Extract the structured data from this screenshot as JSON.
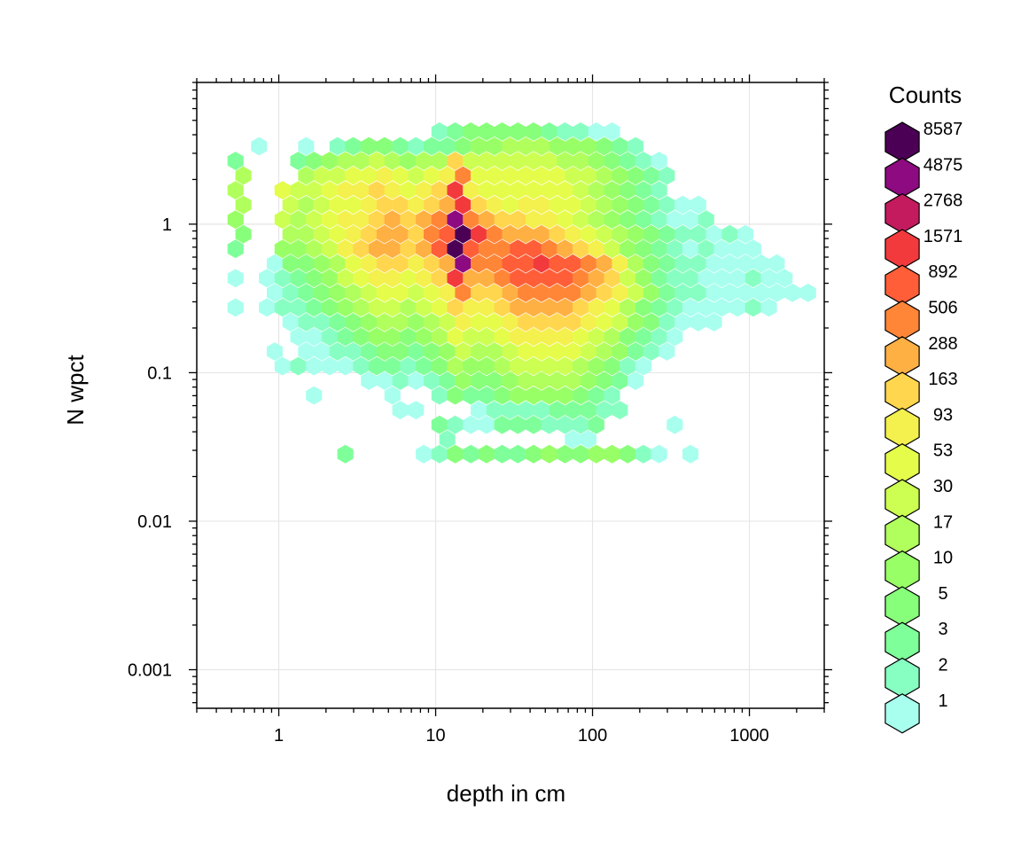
{
  "chart_data": {
    "type": "heatmap",
    "subtype": "hexbin",
    "xlabel": "depth in cm",
    "ylabel": "N wpct",
    "x_scale": "log10",
    "y_scale": "log10",
    "xlim": [
      0.3,
      3000
    ],
    "ylim": [
      0.00055,
      9
    ],
    "x_ticks": [
      {
        "value": 1,
        "label": "1"
      },
      {
        "value": 10,
        "label": "10"
      },
      {
        "value": 100,
        "label": "100"
      },
      {
        "value": 1000,
        "label": "1000"
      }
    ],
    "y_ticks": [
      {
        "value": 1,
        "label": "1"
      },
      {
        "value": 0.1,
        "label": "0.1"
      },
      {
        "value": 0.01,
        "label": "0.01"
      },
      {
        "value": 0.001,
        "label": "0.001"
      }
    ],
    "grid": true,
    "legend": {
      "title": "Counts",
      "placement": "right",
      "levels": [
        {
          "label": "8587",
          "color": "#4B0055"
        },
        {
          "label": "4875",
          "color": "#8E0A80"
        },
        {
          "label": "2768",
          "color": "#C41A5E"
        },
        {
          "label": "1571",
          "color": "#F23A3C"
        },
        {
          "label": "892",
          "color": "#FF5E38"
        },
        {
          "label": "506",
          "color": "#FF8637"
        },
        {
          "label": "288",
          "color": "#FFB043"
        },
        {
          "label": "163",
          "color": "#FFD64E"
        },
        {
          "label": "93",
          "color": "#F4F04D"
        },
        {
          "label": "53",
          "color": "#E6FC4B"
        },
        {
          "label": "30",
          "color": "#CDFF52"
        },
        {
          "label": "17",
          "color": "#B1FF5C"
        },
        {
          "label": "10",
          "color": "#99FF66"
        },
        {
          "label": "5",
          "color": "#88FF7A"
        },
        {
          "label": "3",
          "color": "#7FFF99"
        },
        {
          "label": "2",
          "color": "#88FFC2"
        },
        {
          "label": "1",
          "color": "#A8FFEE"
        }
      ]
    },
    "hex_rows": {
      "x_origin": 0.53,
      "x_step_log10": 0.1,
      "y_top": 4.2,
      "y_step_log10": -0.0987,
      "counts_legend_index": "0 = 8587 (darkest) ... 16 = 1 (lightest), -1 = empty",
      "rows": [
        [
          -1,
          -1,
          -1,
          -1,
          -1,
          -1,
          -1,
          -1,
          -1,
          -1,
          -1,
          -1,
          -1,
          15,
          14,
          13,
          13,
          13,
          13,
          13,
          14,
          15,
          15,
          16,
          16,
          -1,
          -1,
          -1,
          -1,
          -1,
          -1,
          -1,
          -1,
          -1,
          -1,
          -1,
          -1
        ],
        [
          -1,
          16,
          -1,
          -1,
          16,
          -1,
          15,
          14,
          13,
          13,
          14,
          15,
          14,
          14,
          13,
          12,
          12,
          11,
          11,
          11,
          12,
          12,
          12,
          13,
          14,
          15,
          -1,
          -1,
          -1,
          -1,
          -1,
          -1,
          -1,
          -1,
          -1,
          -1,
          -1
        ],
        [
          14,
          -1,
          -1,
          -1,
          14,
          13,
          12,
          11,
          11,
          10,
          11,
          12,
          11,
          11,
          7,
          10,
          10,
          10,
          10,
          10,
          10,
          11,
          11,
          12,
          13,
          14,
          15,
          16,
          -1,
          -1,
          -1,
          -1,
          -1,
          -1,
          -1,
          -1,
          -1
        ],
        [
          11,
          -1,
          -1,
          -1,
          11,
          10,
          10,
          9,
          9,
          8,
          9,
          10,
          9,
          8,
          5,
          9,
          9,
          9,
          9,
          9,
          9,
          10,
          10,
          11,
          12,
          13,
          14,
          15,
          -1,
          -1,
          -1,
          -1,
          -1,
          -1,
          -1,
          -1,
          -1
        ],
        [
          11,
          -1,
          -1,
          9,
          10,
          10,
          9,
          8,
          8,
          7,
          8,
          9,
          8,
          7,
          3,
          8,
          9,
          9,
          9,
          9,
          9,
          9,
          10,
          11,
          12,
          13,
          14,
          15,
          -1,
          -1,
          -1,
          -1,
          -1,
          -1,
          -1,
          -1,
          -1
        ],
        [
          11,
          -1,
          -1,
          10,
          11,
          10,
          9,
          9,
          8,
          7,
          7,
          8,
          7,
          6,
          3,
          7,
          8,
          9,
          8,
          8,
          9,
          9,
          10,
          11,
          12,
          13,
          14,
          15,
          16,
          16,
          -1,
          -1,
          -1,
          -1,
          -1,
          -1,
          -1
        ],
        [
          12,
          -1,
          -1,
          10,
          11,
          10,
          9,
          8,
          8,
          7,
          6,
          7,
          6,
          5,
          1,
          5,
          6,
          7,
          7,
          8,
          8,
          9,
          10,
          11,
          12,
          13,
          14,
          15,
          16,
          16,
          15,
          -1,
          -1,
          -1,
          -1,
          -1,
          -1
        ],
        [
          13,
          -1,
          -1,
          11,
          11,
          10,
          9,
          8,
          7,
          6,
          6,
          7,
          5,
          4,
          0,
          3,
          5,
          6,
          6,
          6,
          7,
          8,
          9,
          10,
          11,
          12,
          13,
          14,
          15,
          15,
          16,
          15,
          16,
          -1,
          -1,
          -1,
          -1
        ],
        [
          14,
          -1,
          -1,
          12,
          12,
          11,
          10,
          8,
          7,
          6,
          6,
          7,
          6,
          4,
          0,
          4,
          5,
          5,
          4,
          4,
          5,
          6,
          7,
          8,
          10,
          12,
          13,
          14,
          15,
          16,
          15,
          16,
          16,
          16,
          -1,
          -1,
          -1
        ],
        [
          -1,
          -1,
          16,
          13,
          13,
          12,
          11,
          9,
          8,
          7,
          7,
          8,
          7,
          6,
          1,
          5,
          5,
          4,
          4,
          3,
          4,
          4,
          5,
          6,
          8,
          11,
          13,
          14,
          15,
          15,
          16,
          16,
          16,
          16,
          16,
          -1,
          -1
        ],
        [
          16,
          -1,
          16,
          15,
          14,
          13,
          12,
          10,
          9,
          8,
          8,
          9,
          8,
          7,
          3,
          6,
          6,
          5,
          4,
          4,
          4,
          4,
          5,
          6,
          7,
          10,
          12,
          14,
          15,
          15,
          16,
          16,
          16,
          15,
          16,
          16,
          -1
        ],
        [
          -1,
          -1,
          16,
          15,
          14,
          13,
          12,
          11,
          10,
          9,
          9,
          10,
          9,
          8,
          5,
          7,
          7,
          6,
          5,
          5,
          5,
          5,
          6,
          7,
          8,
          10,
          12,
          14,
          15,
          15,
          16,
          16,
          16,
          16,
          16,
          16,
          16
        ],
        [
          16,
          -1,
          16,
          15,
          15,
          14,
          13,
          12,
          11,
          10,
          10,
          11,
          10,
          9,
          7,
          8,
          8,
          7,
          6,
          6,
          6,
          6,
          7,
          8,
          9,
          11,
          13,
          14,
          15,
          16,
          16,
          16,
          16,
          15,
          16,
          -1,
          -1
        ],
        [
          -1,
          -1,
          -1,
          16,
          15,
          15,
          14,
          13,
          12,
          11,
          11,
          12,
          11,
          10,
          8,
          9,
          9,
          8,
          7,
          7,
          7,
          7,
          8,
          9,
          10,
          12,
          13,
          15,
          16,
          16,
          16,
          -1,
          -1,
          -1,
          -1,
          -1,
          -1
        ],
        [
          -1,
          -1,
          -1,
          -1,
          16,
          16,
          15,
          14,
          13,
          12,
          12,
          13,
          12,
          11,
          9,
          10,
          10,
          9,
          8,
          8,
          8,
          8,
          9,
          10,
          11,
          13,
          14,
          15,
          16,
          -1,
          -1,
          -1,
          -1,
          -1,
          -1,
          -1,
          -1
        ],
        [
          -1,
          -1,
          16,
          -1,
          16,
          16,
          15,
          15,
          14,
          13,
          13,
          14,
          13,
          12,
          10,
          11,
          11,
          10,
          9,
          9,
          9,
          9,
          10,
          11,
          12,
          14,
          15,
          16,
          -1,
          -1,
          -1,
          -1,
          -1,
          -1,
          -1,
          -1,
          -1
        ],
        [
          -1,
          -1,
          -1,
          16,
          15,
          16,
          16,
          16,
          15,
          14,
          14,
          15,
          14,
          13,
          11,
          12,
          12,
          11,
          10,
          10,
          10,
          10,
          11,
          12,
          13,
          15,
          16,
          -1,
          -1,
          -1,
          -1,
          -1,
          -1,
          -1,
          -1,
          -1,
          -1
        ],
        [
          -1,
          -1,
          -1,
          -1,
          -1,
          -1,
          -1,
          -1,
          16,
          16,
          15,
          16,
          15,
          14,
          12,
          13,
          13,
          12,
          11,
          11,
          11,
          11,
          12,
          13,
          14,
          16,
          -1,
          -1,
          -1,
          -1,
          -1,
          -1,
          -1,
          -1,
          -1,
          -1,
          -1
        ],
        [
          -1,
          -1,
          -1,
          -1,
          -1,
          16,
          -1,
          -1,
          -1,
          -1,
          16,
          -1,
          -1,
          15,
          13,
          14,
          14,
          13,
          12,
          12,
          12,
          12,
          13,
          14,
          15,
          -1,
          -1,
          -1,
          -1,
          -1,
          -1,
          -1,
          -1,
          -1,
          -1,
          -1,
          -1
        ],
        [
          -1,
          -1,
          -1,
          -1,
          -1,
          -1,
          -1,
          -1,
          -1,
          -1,
          16,
          16,
          -1,
          -1,
          -1,
          16,
          15,
          15,
          15,
          15,
          14,
          14,
          14,
          15,
          15,
          -1,
          -1,
          -1,
          -1,
          -1,
          -1,
          -1,
          -1,
          -1,
          -1,
          -1,
          -1
        ],
        [
          -1,
          -1,
          -1,
          -1,
          -1,
          -1,
          -1,
          -1,
          -1,
          -1,
          -1,
          -1,
          -1,
          14,
          15,
          16,
          16,
          14,
          14,
          14,
          15,
          15,
          15,
          14,
          -1,
          -1,
          -1,
          -1,
          16,
          -1,
          -1,
          -1,
          -1,
          -1,
          -1,
          -1,
          -1
        ],
        [
          -1,
          -1,
          -1,
          -1,
          -1,
          -1,
          -1,
          -1,
          -1,
          -1,
          -1,
          -1,
          -1,
          15,
          -1,
          -1,
          -1,
          -1,
          -1,
          -1,
          -1,
          16,
          16,
          -1,
          -1,
          -1,
          -1,
          -1,
          -1,
          -1,
          -1,
          -1,
          -1,
          -1,
          -1,
          -1,
          -1
        ],
        [
          -1,
          -1,
          -1,
          -1,
          -1,
          -1,
          -1,
          14,
          -1,
          -1,
          -1,
          -1,
          16,
          15,
          13,
          14,
          13,
          14,
          14,
          13,
          12,
          13,
          13,
          12,
          12,
          13,
          15,
          16,
          -1,
          16,
          -1,
          -1,
          -1,
          -1,
          -1,
          -1,
          -1
        ]
      ]
    }
  }
}
